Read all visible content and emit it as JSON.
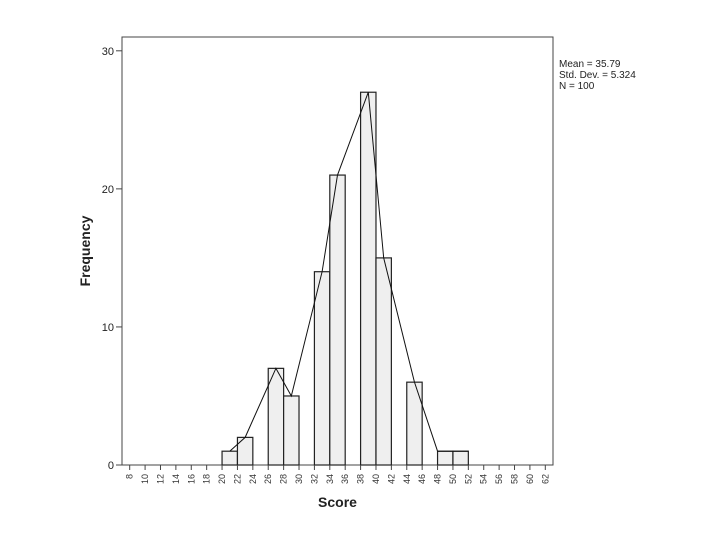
{
  "chart_data": {
    "type": "bar",
    "subtype": "histogram",
    "xlabel": "Score",
    "ylabel": "Frequency",
    "xlim": [
      7,
      63
    ],
    "ylim": [
      0,
      31
    ],
    "x_ticks": [
      "8",
      "10",
      "12",
      "14",
      "16",
      "18",
      "20",
      "22",
      "24",
      "26",
      "28",
      "30",
      "32",
      "34",
      "36",
      "38",
      "40",
      "42",
      "44",
      "46",
      "48",
      "50",
      "52",
      "54",
      "56",
      "58",
      "60",
      "62"
    ],
    "y_ticks": [
      "0",
      "10",
      "20",
      "30"
    ],
    "bin_width": 2,
    "bins": [
      {
        "start": 20,
        "end": 22,
        "value": 1
      },
      {
        "start": 22,
        "end": 24,
        "value": 2
      },
      {
        "start": 24,
        "end": 26,
        "value": 0
      },
      {
        "start": 26,
        "end": 28,
        "value": 7
      },
      {
        "start": 28,
        "end": 30,
        "value": 5
      },
      {
        "start": 30,
        "end": 32,
        "value": 0
      },
      {
        "start": 32,
        "end": 34,
        "value": 14
      },
      {
        "start": 34,
        "end": 36,
        "value": 21
      },
      {
        "start": 36,
        "end": 38,
        "value": 0
      },
      {
        "start": 38,
        "end": 40,
        "value": 27
      },
      {
        "start": 40,
        "end": 42,
        "value": 15
      },
      {
        "start": 42,
        "end": 44,
        "value": 0
      },
      {
        "start": 44,
        "end": 46,
        "value": 6
      },
      {
        "start": 46,
        "end": 48,
        "value": 0
      },
      {
        "start": 48,
        "end": 50,
        "value": 1
      },
      {
        "start": 50,
        "end": 52,
        "value": 1
      }
    ],
    "polygon": {
      "x": [
        21,
        23,
        27,
        29,
        33,
        35,
        39,
        41,
        45,
        48,
        52
      ],
      "y": [
        1,
        2,
        7,
        5,
        14,
        21,
        27,
        15,
        6,
        1,
        1
      ]
    },
    "bar_fill": "#efefef",
    "bar_stroke": "#222222",
    "grid": false,
    "legend": "none",
    "stats": {
      "mean": "Mean = 35.79",
      "std": "Std. Dev. = 5.324",
      "n": "N = 100"
    }
  }
}
